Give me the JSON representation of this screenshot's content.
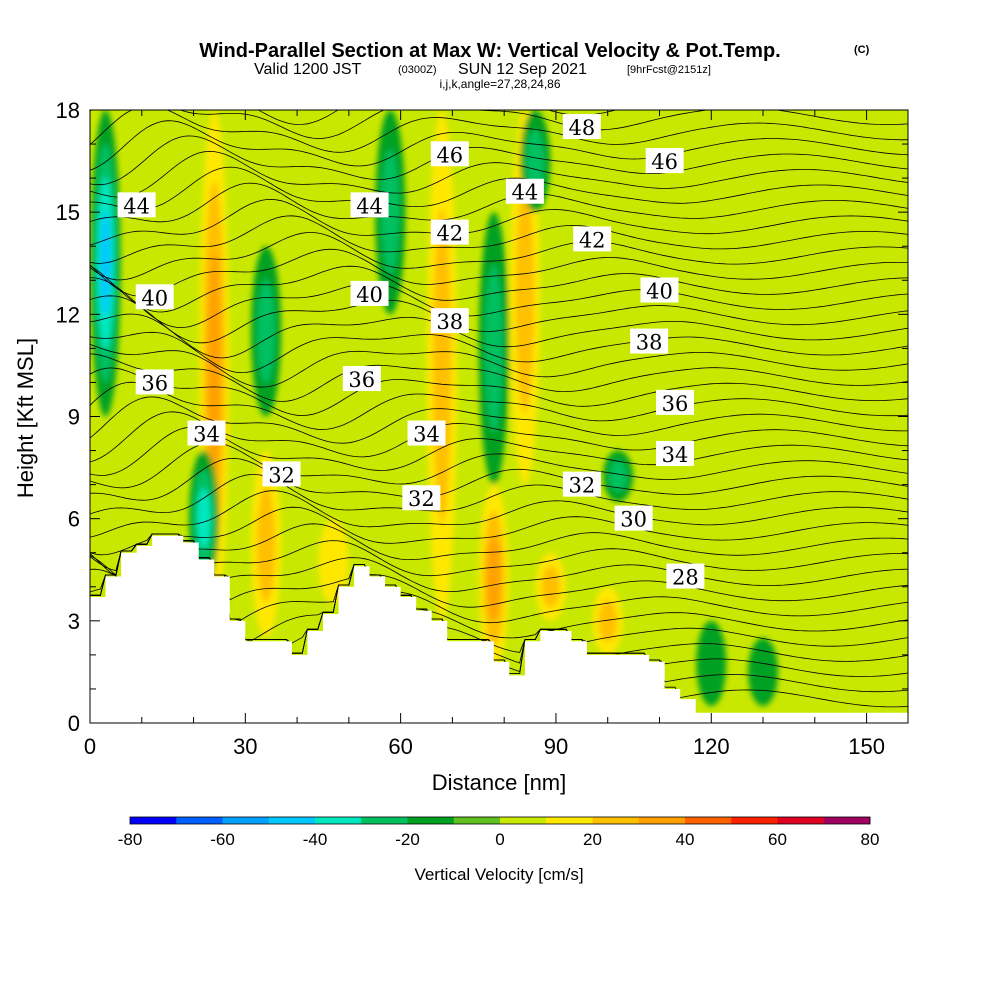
{
  "title": {
    "main": "Wind-Parallel Section at Max W: Vertical Velocity & Pot.Temp.",
    "copyright": "(C)",
    "valid_prefix": "Valid 1200 JST",
    "valid_utc": "(0300Z)",
    "valid_date": "SUN 12 Sep 2021",
    "forecast": "[9hrFcst@2151z]",
    "params": "i,j,k,angle=27,28,24,86"
  },
  "chart_data": {
    "type": "heatmap",
    "xlabel": "Distance [nm]",
    "ylabel": "Height [Kft MSL]",
    "xlim": [
      0,
      158
    ],
    "ylim": [
      0,
      18
    ],
    "x_ticks": [
      0,
      30,
      60,
      90,
      120,
      150
    ],
    "y_ticks": [
      0,
      3,
      6,
      9,
      12,
      15,
      18
    ],
    "fill_variable": "Vertical Velocity [cm/s]",
    "colorbar": {
      "title": "Vertical Velocity [cm/s]",
      "levels": [
        -80,
        -70,
        -60,
        -50,
        -40,
        -30,
        -20,
        -10,
        0,
        10,
        20,
        30,
        40,
        50,
        60,
        70,
        80
      ],
      "tick_labels": [
        "-80",
        "-60",
        "-40",
        "-20",
        "0",
        "20",
        "40",
        "60",
        "80"
      ],
      "colors": [
        "#0000ff",
        "#0060ff",
        "#00a0ff",
        "#00c8ff",
        "#00e8c0",
        "#00c060",
        "#00a020",
        "#60c020",
        "#c8e800",
        "#ffe800",
        "#ffc000",
        "#ffa000",
        "#ff6000",
        "#ff2000",
        "#e00020",
        "#a00060",
        "#6000a0"
      ]
    },
    "updraft_cores": [
      {
        "x": 24,
        "z_min": 3,
        "z_max": 18,
        "w": 30
      },
      {
        "x": 34,
        "z_min": 2.5,
        "z_max": 8,
        "w": 20
      },
      {
        "x": 47,
        "z_min": 3.5,
        "z_max": 6,
        "w": 15
      },
      {
        "x": 68,
        "z_min": 3,
        "z_max": 18,
        "w": 20
      },
      {
        "x": 78,
        "z_min": 1.5,
        "z_max": 7,
        "w": 30
      },
      {
        "x": 84,
        "z_min": 7,
        "z_max": 18,
        "w": 20
      },
      {
        "x": 89,
        "z_min": 3,
        "z_max": 5,
        "w": 20
      },
      {
        "x": 100,
        "z_min": 2,
        "z_max": 4,
        "w": 20
      }
    ],
    "downdraft_cores": [
      {
        "x": 3,
        "z_min": 9,
        "z_max": 18,
        "w": -40
      },
      {
        "x": 22,
        "z_min": 4,
        "z_max": 8,
        "w": -30
      },
      {
        "x": 34,
        "z_min": 9,
        "z_max": 14,
        "w": -20
      },
      {
        "x": 58,
        "z_min": 12,
        "z_max": 18,
        "w": -20
      },
      {
        "x": 78,
        "z_min": 7,
        "z_max": 15,
        "w": -20
      },
      {
        "x": 86,
        "z_min": 15,
        "z_max": 18,
        "w": -20
      },
      {
        "x": 102,
        "z_min": 6.5,
        "z_max": 8,
        "w": -20
      },
      {
        "x": 120,
        "z_min": 0.5,
        "z_max": 3,
        "w": -10
      },
      {
        "x": 130,
        "z_min": 0.5,
        "z_max": 2.5,
        "w": -10
      }
    ],
    "theta_contours": {
      "interval": 2,
      "labels": [
        {
          "text": "44",
          "x": 9,
          "z": 15.2
        },
        {
          "text": "40",
          "x": 12.5,
          "z": 12.5
        },
        {
          "text": "36",
          "x": 12.5,
          "z": 10
        },
        {
          "text": "34",
          "x": 22.5,
          "z": 8.5
        },
        {
          "text": "32",
          "x": 37,
          "z": 7.3
        },
        {
          "text": "44",
          "x": 54,
          "z": 15.2
        },
        {
          "text": "40",
          "x": 54,
          "z": 12.6
        },
        {
          "text": "36",
          "x": 52.5,
          "z": 10.1
        },
        {
          "text": "46",
          "x": 69.5,
          "z": 16.7
        },
        {
          "text": "42",
          "x": 69.5,
          "z": 14.4
        },
        {
          "text": "38",
          "x": 69.5,
          "z": 11.8
        },
        {
          "text": "34",
          "x": 65,
          "z": 8.5
        },
        {
          "text": "32",
          "x": 64,
          "z": 6.6
        },
        {
          "text": "44",
          "x": 84,
          "z": 15.6
        },
        {
          "text": "48",
          "x": 95,
          "z": 17.5
        },
        {
          "text": "46",
          "x": 111,
          "z": 16.5
        },
        {
          "text": "42",
          "x": 97,
          "z": 14.2
        },
        {
          "text": "40",
          "x": 110,
          "z": 12.7
        },
        {
          "text": "38",
          "x": 108,
          "z": 11.2
        },
        {
          "text": "36",
          "x": 113,
          "z": 9.4
        },
        {
          "text": "34",
          "x": 113,
          "z": 7.9
        },
        {
          "text": "32",
          "x": 95,
          "z": 7.0
        },
        {
          "text": "30",
          "x": 105,
          "z": 6.0
        },
        {
          "text": "28",
          "x": 115,
          "z": 4.3
        }
      ]
    },
    "terrain": [
      [
        0,
        3.7
      ],
      [
        3,
        3.7
      ],
      [
        3,
        4.3
      ],
      [
        6,
        4.3
      ],
      [
        6,
        5.0
      ],
      [
        9,
        5.0
      ],
      [
        9,
        5.2
      ],
      [
        12,
        5.2
      ],
      [
        12,
        5.5
      ],
      [
        18,
        5.5
      ],
      [
        18,
        5.3
      ],
      [
        21,
        5.3
      ],
      [
        21,
        4.8
      ],
      [
        24,
        4.8
      ],
      [
        24,
        4.3
      ],
      [
        27,
        4.3
      ],
      [
        27,
        3.0
      ],
      [
        30,
        3.0
      ],
      [
        30,
        2.4
      ],
      [
        39,
        2.4
      ],
      [
        39,
        2.0
      ],
      [
        42,
        2.0
      ],
      [
        42,
        2.7
      ],
      [
        45,
        2.7
      ],
      [
        45,
        3.2
      ],
      [
        48,
        3.2
      ],
      [
        48,
        4.0
      ],
      [
        51,
        4.0
      ],
      [
        51,
        4.6
      ],
      [
        54,
        4.6
      ],
      [
        54,
        4.3
      ],
      [
        57,
        4.3
      ],
      [
        57,
        4.0
      ],
      [
        60,
        4.0
      ],
      [
        60,
        3.7
      ],
      [
        63,
        3.7
      ],
      [
        63,
        3.3
      ],
      [
        66,
        3.3
      ],
      [
        66,
        3.0
      ],
      [
        69,
        3.0
      ],
      [
        69,
        2.4
      ],
      [
        78,
        2.4
      ],
      [
        78,
        1.8
      ],
      [
        81,
        1.8
      ],
      [
        81,
        1.4
      ],
      [
        84,
        1.4
      ],
      [
        84,
        2.4
      ],
      [
        87,
        2.4
      ],
      [
        87,
        2.7
      ],
      [
        93,
        2.7
      ],
      [
        93,
        2.4
      ],
      [
        96,
        2.4
      ],
      [
        96,
        2.0
      ],
      [
        108,
        2.0
      ],
      [
        108,
        1.8
      ],
      [
        111,
        1.8
      ],
      [
        111,
        1.0
      ],
      [
        114,
        1.0
      ],
      [
        114,
        0.7
      ],
      [
        117,
        0.7
      ],
      [
        117,
        0.3
      ],
      [
        158,
        0.3
      ]
    ]
  }
}
